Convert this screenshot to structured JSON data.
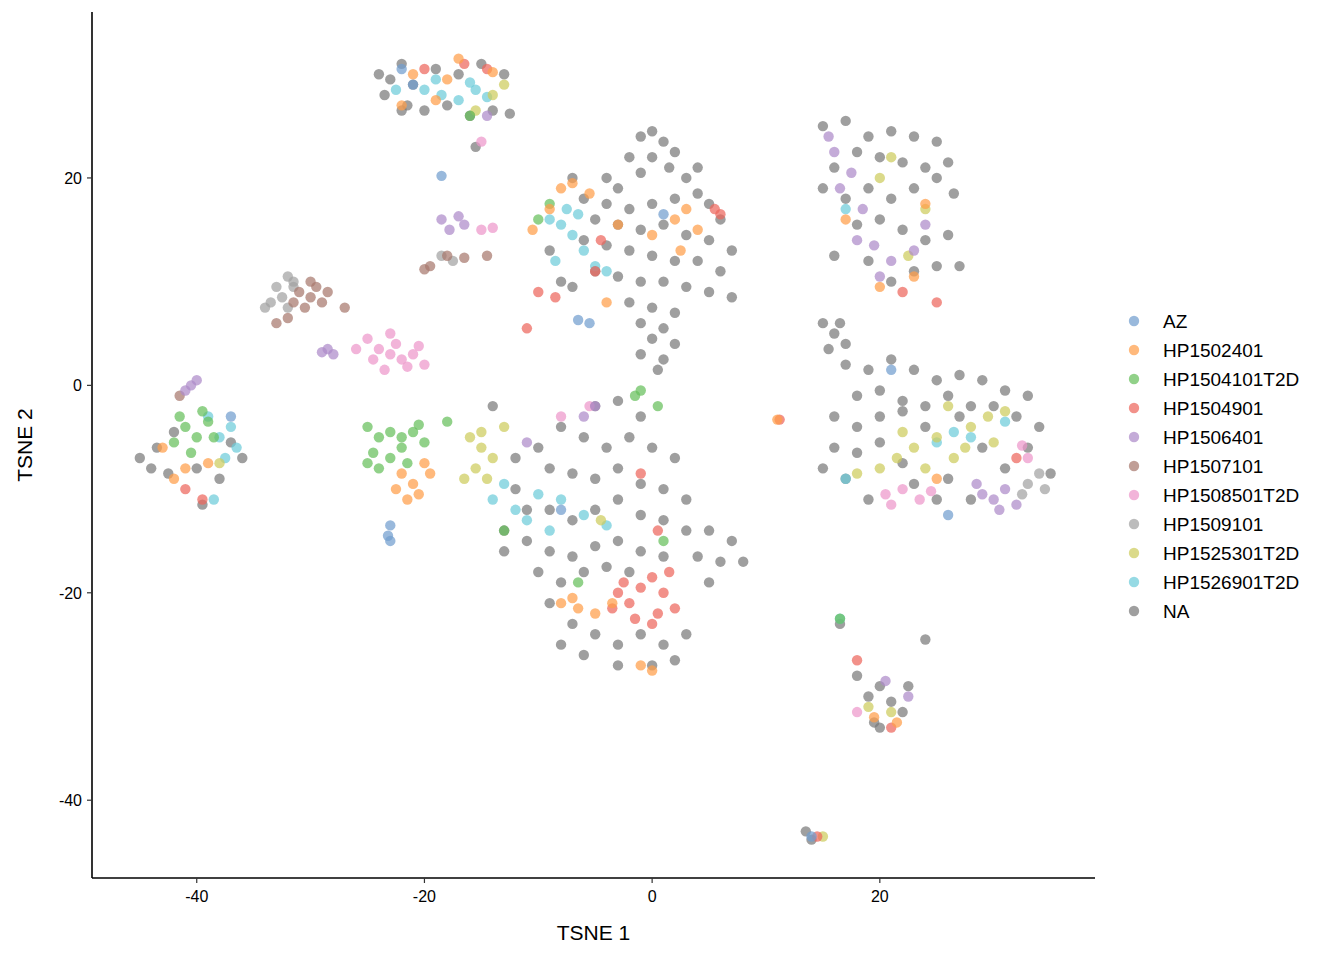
{
  "chart_data": {
    "type": "scatter",
    "x_label": "TSNE 1",
    "y_label": "TSNE 2",
    "xlim": [
      -49.2,
      38.9
    ],
    "ylim": [
      -47.5,
      36
    ],
    "xticks": [
      -40,
      -20,
      0,
      20
    ],
    "yticks": [
      -40,
      -20,
      0,
      20
    ],
    "grid": false,
    "legend": "right",
    "series": [
      {
        "name": "AZ",
        "color": "#729ECE",
        "x": [
          -6.5,
          -5.5,
          1,
          -23,
          -23.2,
          -23,
          -21,
          -22,
          -37,
          14,
          26,
          21,
          -18.5,
          -8
        ],
        "values": [
          6.3,
          6,
          16.5,
          -13.5,
          -14.5,
          -15,
          29,
          30.5,
          -3,
          -43.5,
          -12.5,
          1.5,
          20.2,
          -12
        ]
      },
      {
        "name": "HP1502401",
        "color": "#FF9E4A",
        "x": [
          -21,
          -18,
          -17,
          -14,
          -22,
          -19,
          -8,
          -7,
          -5.5,
          -9,
          -3,
          2,
          3,
          4,
          2.5,
          0,
          -4,
          -10.5,
          -8,
          -6.5,
          -5,
          -3.5,
          -7,
          0,
          -1,
          -22,
          -21,
          -20.5,
          -22.5,
          -19.5,
          -21.5,
          -20,
          -43,
          -41,
          -39,
          -42,
          20,
          23,
          24,
          17,
          25,
          19.5,
          21.5,
          11
        ],
        "values": [
          30,
          29.5,
          31.5,
          30.2,
          27,
          27.5,
          19,
          19.5,
          18.5,
          17,
          15.5,
          16,
          17,
          15,
          13,
          14.5,
          8,
          15,
          -21,
          -21.5,
          -22,
          -21,
          -20.5,
          -27.5,
          -27,
          -8.5,
          -9.5,
          -10.5,
          -10,
          -8.5,
          -11,
          -7.5,
          -6,
          -8,
          -7.5,
          -9,
          9.5,
          10.5,
          17.5,
          16,
          -9,
          -32,
          -32.5,
          -3.3
        ]
      },
      {
        "name": "HP1504101T2D",
        "color": "#67BF5C",
        "x": [
          -41,
          -40,
          -39,
          -42,
          -38.5,
          -40.5,
          -41.5,
          -39.5,
          -25,
          -24,
          -23,
          -22,
          -21,
          -20,
          -24.5,
          -23,
          -22,
          -21.5,
          -20.5,
          -25,
          -24,
          -9,
          -10,
          -1,
          -1.5,
          0.5,
          1,
          -18,
          -13,
          -16,
          16.5,
          -6.5
        ],
        "values": [
          -4,
          -5,
          -3.5,
          -5.5,
          -5,
          -6.5,
          -3,
          -2.5,
          -4,
          -5,
          -4.5,
          -5,
          -4.5,
          -5.5,
          -6.5,
          -7,
          -6,
          -7.5,
          -3.8,
          -7.5,
          -8,
          17.5,
          16,
          -0.5,
          -1,
          -2,
          -15,
          -3.5,
          -14,
          26,
          -22.5,
          -19
        ]
      },
      {
        "name": "HP1504901",
        "color": "#ED665D",
        "x": [
          -3,
          -2,
          -1,
          0,
          1,
          2,
          -1.5,
          0.5,
          -2.5,
          1.5,
          -3.5,
          0,
          -20,
          -16.5,
          -14.5,
          -10,
          -11,
          -5,
          -8.5,
          6,
          5.5,
          -4.5,
          -41,
          -39.5,
          22,
          25,
          18,
          21,
          14.5,
          11.2,
          -1,
          0.5,
          32
        ],
        "values": [
          -20,
          -21,
          -19.5,
          -18.5,
          -20,
          -21.5,
          -22.5,
          -22,
          -19,
          -18,
          -21.5,
          -23,
          30.5,
          31,
          30.5,
          9,
          5.5,
          11,
          8.5,
          16.5,
          17,
          14,
          -10,
          -11,
          9,
          8,
          -26.5,
          -33,
          -43.5,
          -3.3,
          -8.5,
          -14,
          -7
        ]
      },
      {
        "name": "HP1506401",
        "color": "#AD8BC9",
        "x": [
          -18.5,
          -17,
          -16.5,
          -17.8,
          -28.5,
          -28,
          -29,
          -40.5,
          -40,
          -41,
          15.5,
          16,
          17.5,
          16.5,
          18,
          19.5,
          21,
          20,
          23,
          24,
          18.5,
          29,
          30,
          31,
          32,
          30.5,
          28.5,
          -5,
          -6,
          -11,
          20.5,
          22.5,
          -14.5
        ],
        "values": [
          16,
          16.3,
          15.5,
          15,
          3.5,
          3,
          3.2,
          0,
          0.5,
          -0.5,
          24,
          22.5,
          20.5,
          19,
          14,
          13.5,
          12,
          10.5,
          13,
          15.5,
          17,
          -10.5,
          -11,
          -10,
          -11.5,
          -12,
          -9.5,
          -2,
          -3,
          -5.5,
          -28.5,
          -30,
          26
        ]
      },
      {
        "name": "HP1507101",
        "color": "#A8786E",
        "x": [
          -31,
          -30,
          -29.5,
          -30.5,
          -29,
          -31.5,
          -28.5,
          -30,
          -32,
          -33,
          -27,
          -41.5,
          -18,
          -19.5,
          -20,
          -14.5,
          -16.5
        ],
        "values": [
          9,
          8.5,
          9.5,
          7.5,
          8,
          8,
          9,
          10,
          6.5,
          6,
          7.5,
          -1,
          12.5,
          11.5,
          11.2,
          12.5,
          12.3
        ]
      },
      {
        "name": "HP1508501T2D",
        "color": "#ED97CA",
        "x": [
          -24,
          -23,
          -22,
          -21,
          -20,
          -23.5,
          -22.5,
          -21.5,
          -24.5,
          -26,
          -20.5,
          -25,
          -23,
          -14,
          -15,
          20.5,
          22,
          23.5,
          24.5,
          21,
          33,
          32.5,
          -5.5,
          18,
          -8,
          -15
        ],
        "values": [
          3.5,
          3,
          2.5,
          3,
          2,
          1.5,
          4,
          1.8,
          2.5,
          3.5,
          3.8,
          4.5,
          5,
          15.2,
          15,
          -10.5,
          -10,
          -11,
          -10.2,
          -11.5,
          -7,
          -5.8,
          -2,
          -31.5,
          -3,
          23.5
        ]
      },
      {
        "name": "HP1509101",
        "color": "#A2A2A2",
        "x": [
          -33,
          -32,
          -32.5,
          -31.5,
          -33.5,
          -34,
          -32,
          -31.5,
          -18.5,
          -17.5,
          33,
          34,
          34.5,
          32.5
        ],
        "values": [
          9.5,
          10.5,
          8.5,
          9.5,
          8,
          7.5,
          7.5,
          10,
          12.5,
          12,
          -9.5,
          -8.5,
          -10,
          -10.5
        ]
      },
      {
        "name": "HP1525301T2D",
        "color": "#CDCC5D",
        "x": [
          -16,
          -15,
          -14,
          -15.5,
          -16.5,
          -14.5,
          -15,
          20,
          21.5,
          23,
          24,
          25,
          26.5,
          28,
          29.5,
          30,
          31,
          27.5,
          22,
          18,
          26,
          21,
          24,
          22.5,
          20,
          -14,
          -15.5,
          -13,
          -13,
          19,
          21,
          15,
          -4.5,
          -38
        ],
        "values": [
          -5,
          -6,
          -7,
          -8,
          -9,
          -9,
          -4.5,
          -8,
          -7,
          -6,
          -8,
          -5,
          -7,
          -4,
          -3,
          -5.5,
          -2.5,
          -6,
          -4.5,
          -8.5,
          -2,
          22,
          17,
          12.5,
          20,
          28,
          26.5,
          29,
          -4,
          -31,
          -31.5,
          -43.5,
          -13,
          -7.5
        ]
      },
      {
        "name": "HP1526901T2D",
        "color": "#6DCCDA",
        "x": [
          -20,
          -18.5,
          -17,
          -15.5,
          -14.5,
          -16,
          -19,
          -22.5,
          -9,
          -8,
          -7,
          -6,
          -5,
          -4,
          -7.5,
          -6.5,
          -8.5,
          -14,
          -12,
          -10,
          -8,
          -6,
          -4,
          -11,
          -9,
          -13,
          -38,
          -37,
          -36.5,
          -39,
          -37.5,
          -38.5,
          25,
          26.5,
          28,
          31,
          17,
          16.5,
          17
        ],
        "values": [
          28.5,
          28,
          27.5,
          28.5,
          27.8,
          29.2,
          29.5,
          28.5,
          16,
          15.5,
          14.5,
          13,
          11.5,
          11,
          17,
          16.5,
          12,
          -11,
          -12,
          -10.5,
          -11,
          -12.5,
          -13.5,
          -13,
          -14,
          -9.5,
          -5,
          -4,
          -6,
          -3,
          -7,
          -11,
          -5.5,
          -4.5,
          -5,
          -3.5,
          -9,
          -22.5,
          17
        ]
      },
      {
        "name": "NA",
        "color": "#7A7A7A",
        "x": [
          -1,
          0,
          1,
          2,
          -2,
          0,
          1.5,
          -1,
          3,
          -3,
          -6,
          -4,
          -2,
          0,
          2,
          4,
          5,
          6,
          -5,
          -3,
          -1,
          1,
          3,
          5,
          7,
          -6,
          -4,
          -2,
          0,
          2,
          4,
          6,
          -5,
          -3,
          -1,
          1,
          3,
          5,
          7,
          -7,
          -2,
          0,
          2,
          -1,
          1,
          0,
          2,
          -1,
          1,
          0.5,
          -9,
          -8,
          4,
          -4,
          -7,
          -5,
          -3,
          -1,
          -8,
          -6,
          -4,
          -2,
          0,
          2,
          -10,
          -9,
          -7,
          -5,
          -3,
          -1,
          1,
          3,
          -12,
          -11,
          -9,
          -7,
          -5,
          -3,
          -1,
          1,
          3,
          5,
          7,
          8,
          6,
          4,
          5,
          -13,
          -11,
          -9,
          -7,
          -5,
          -3,
          -1,
          1,
          -10,
          -8,
          -6,
          -4,
          -2,
          -9,
          -7,
          -5,
          -3,
          -1,
          1,
          3,
          -6,
          -3,
          0,
          2,
          -8,
          -12,
          -14,
          -13,
          15,
          17,
          19,
          21,
          23,
          25,
          26,
          24,
          22,
          20,
          18,
          16,
          15,
          17,
          19,
          21,
          23,
          25,
          26.5,
          18,
          20,
          22,
          24,
          26,
          19,
          21,
          23,
          25,
          27,
          16,
          15,
          16,
          17,
          15.5,
          16.5,
          17,
          19,
          21,
          23,
          25,
          27,
          29,
          31,
          33,
          18,
          20,
          22,
          24,
          26,
          28,
          30,
          32,
          34,
          16,
          18,
          20,
          22,
          24,
          27,
          29,
          31,
          33,
          35,
          16,
          18,
          20,
          22,
          26,
          28,
          15,
          17,
          23,
          25,
          19,
          -24,
          -23,
          -22,
          -21,
          -19,
          -17,
          -15,
          -13,
          -23.5,
          -21.5,
          -20,
          -18,
          -16,
          -14,
          -12.5,
          -22,
          -15.5,
          -45,
          -43.5,
          -42.5,
          -40,
          -38,
          -36,
          -37,
          -42,
          -39.5,
          -44,
          18,
          19,
          20,
          21,
          22,
          20,
          22.5,
          19.5,
          16.5,
          24,
          13.5,
          14
        ],
        "values": [
          24,
          24.5,
          23.5,
          22.5,
          22,
          22,
          21,
          20.5,
          20,
          19,
          18,
          17.5,
          17,
          17.5,
          18,
          18.5,
          17.5,
          16,
          16,
          15.5,
          15,
          15.5,
          14.5,
          14,
          13,
          14,
          13.5,
          13,
          12.5,
          12,
          12,
          11,
          11,
          10.5,
          10,
          10,
          9.5,
          9,
          8.5,
          9.5,
          8,
          7.5,
          7,
          6,
          5.5,
          4.5,
          4,
          3,
          2.5,
          1.5,
          13,
          10,
          21,
          20,
          20,
          -2,
          -1.5,
          -3,
          -4,
          -5,
          -6,
          -5,
          -6,
          -7,
          -6,
          -8,
          -8.5,
          -9,
          -8,
          -9.5,
          -10,
          -11,
          -10,
          -12,
          -12,
          -13,
          -12,
          -11,
          -12.5,
          -13,
          -14,
          -14,
          -15,
          -17,
          -17,
          -16.5,
          -19,
          -14,
          -15,
          -16,
          -16.5,
          -15.5,
          -15,
          -16,
          -16.5,
          -18,
          -19,
          -18,
          -17.5,
          -18,
          -21,
          -23,
          -24,
          -25,
          -24,
          -25,
          -24,
          -26,
          -27,
          -27,
          -26.5,
          -25,
          -7,
          -2,
          -16,
          25,
          25.5,
          24,
          24.5,
          24,
          23.5,
          21.5,
          21,
          21.5,
          22,
          22.5,
          21,
          19,
          18,
          19,
          18,
          19,
          20,
          18.5,
          15.5,
          16,
          15,
          14,
          14.5,
          12,
          10,
          11,
          11.5,
          11.5,
          12.5,
          6,
          5,
          4,
          3.5,
          6,
          2,
          1.5,
          2.5,
          1.5,
          0.5,
          1,
          0.5,
          -0.5,
          -1,
          -1,
          -0.5,
          -1.5,
          -2,
          -1,
          -2,
          -2,
          -3,
          -4,
          -3,
          -4,
          -3,
          -2.5,
          -4,
          -3,
          -6,
          -8,
          -6,
          -8.5,
          -6,
          -6.5,
          -5.5,
          -7.5,
          -9,
          -11,
          -8,
          -9,
          -9.5,
          -11,
          -11,
          30,
          29.5,
          31,
          29,
          30.5,
          30,
          31,
          30,
          28,
          27,
          26.5,
          27,
          26,
          26.5,
          26.2,
          26.5,
          23,
          -7,
          -6,
          -8.5,
          -8,
          -9,
          -7,
          -5.5,
          -4.5,
          -11.5,
          -8,
          -28,
          -30,
          -29,
          -30.5,
          -31.5,
          -33,
          -29,
          -32.5,
          -23,
          -24.5,
          -43,
          -43.8
        ]
      }
    ]
  }
}
